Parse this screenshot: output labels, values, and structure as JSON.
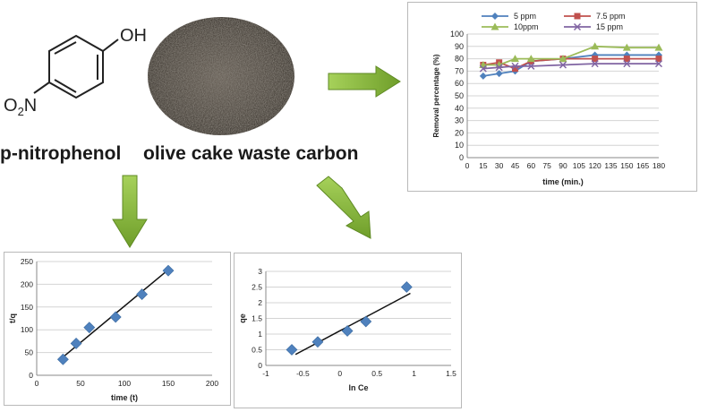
{
  "captions": {
    "compound": "p-nitrophenol",
    "adsorbent": "olive cake waste carbon"
  },
  "molecule": {
    "group_top": "OH",
    "group_bottom": "O2N",
    "group_bottom_main": "O",
    "group_bottom_sub": "2",
    "group_bottom_end": "N"
  },
  "colors": {
    "arrow_green": "#8bbf3f",
    "marker_blue": "#4f81bd"
  },
  "chart_data": [
    {
      "type": "line",
      "x": [
        15,
        30,
        45,
        60,
        90,
        120,
        150,
        180
      ],
      "xticks": [
        0,
        15,
        30,
        45,
        60,
        75,
        90,
        105,
        120,
        135,
        150,
        165,
        180
      ],
      "xlabel": "time (min.)",
      "ylabel": "Removal percentage (%)",
      "ylim": [
        0,
        100
      ],
      "yticks": [
        0,
        10,
        20,
        30,
        40,
        50,
        60,
        70,
        80,
        90,
        100
      ],
      "grid": true,
      "legend": "top",
      "series": [
        {
          "name": "5 ppm",
          "color": "#4f81bd",
          "marker": "diamond",
          "values": [
            66,
            68,
            70,
            78,
            80,
            83,
            83,
            83
          ]
        },
        {
          "name": "7.5 ppm",
          "color": "#c0504d",
          "marker": "square",
          "values": [
            75,
            77,
            72,
            78,
            80,
            80,
            80,
            80
          ]
        },
        {
          "name": "10ppm",
          "color": "#9bbb59",
          "marker": "triangle",
          "values": [
            75,
            75,
            80,
            80,
            80,
            90,
            89,
            89
          ]
        },
        {
          "name": "15 ppm",
          "color": "#8064a2",
          "marker": "x",
          "values": [
            72,
            73,
            74,
            74,
            75,
            76,
            76,
            76
          ]
        }
      ]
    },
    {
      "type": "scatter",
      "x": [
        30,
        45,
        60,
        90,
        120,
        150
      ],
      "values": [
        35,
        70,
        105,
        128,
        178,
        230
      ],
      "trendline": [
        [
          30,
          40
        ],
        [
          150,
          232
        ]
      ],
      "xlabel": "time (t)",
      "ylabel": "t/q",
      "xlim": [
        0,
        200
      ],
      "xticks": [
        0,
        50,
        100,
        150,
        200
      ],
      "ylim": [
        0,
        250
      ],
      "yticks": [
        0,
        50,
        100,
        150,
        200,
        250
      ],
      "grid": true
    },
    {
      "type": "scatter",
      "x": [
        -0.65,
        -0.3,
        0.1,
        0.35,
        0.9
      ],
      "values": [
        0.5,
        0.75,
        1.1,
        1.4,
        2.5
      ],
      "trendline": [
        [
          -0.6,
          0.35
        ],
        [
          0.95,
          2.3
        ]
      ],
      "xlabel": "ln Ce",
      "ylabel": "qe",
      "xlim": [
        -1,
        1.5
      ],
      "xticks": [
        -1,
        -0.5,
        0,
        0.5,
        1,
        1.5
      ],
      "ylim": [
        0,
        3
      ],
      "yticks": [
        0,
        0.5,
        1,
        1.5,
        2,
        2.5,
        3
      ],
      "grid": true
    }
  ]
}
